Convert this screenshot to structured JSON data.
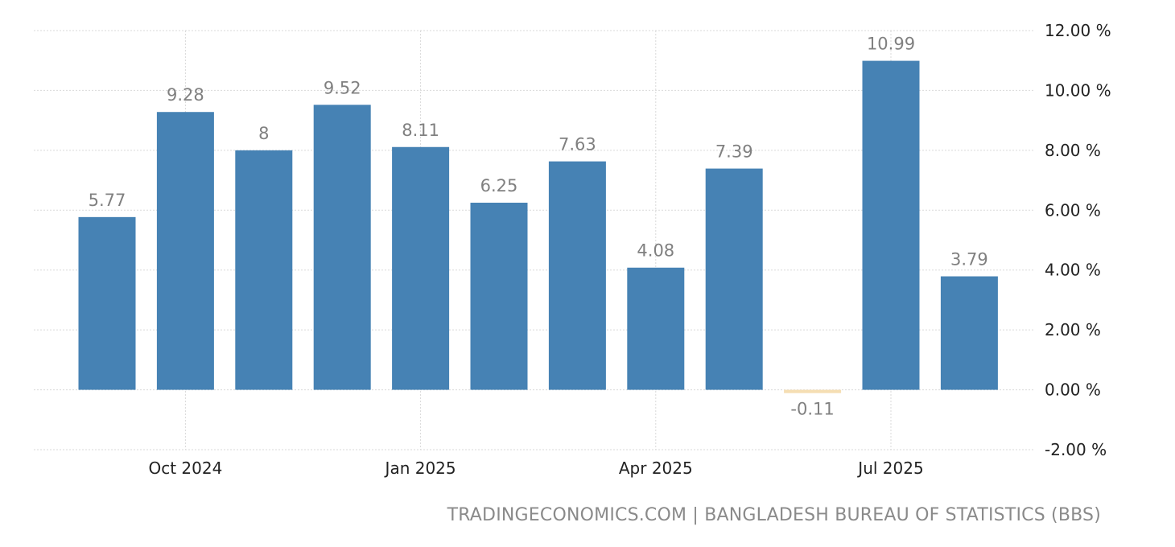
{
  "chart_data": {
    "type": "bar",
    "categories": [
      "Sep 2024",
      "Oct 2024",
      "Nov 2024",
      "Dec 2024",
      "Jan 2025",
      "Feb 2025",
      "Mar 2025",
      "Apr 2025",
      "May 2025",
      "Jun 2025",
      "Jul 2025",
      "Aug 2025"
    ],
    "values": [
      5.77,
      9.28,
      8,
      9.52,
      8.11,
      6.25,
      7.63,
      4.08,
      7.39,
      -0.11,
      10.99,
      3.79
    ],
    "value_labels": [
      "5.77",
      "9.28",
      "8",
      "9.52",
      "8.11",
      "6.25",
      "7.63",
      "4.08",
      "7.39",
      "-0.11",
      "10.99",
      "3.79"
    ],
    "x_ticks": [
      {
        "label": "Oct 2024",
        "category": "Oct 2024"
      },
      {
        "label": "Jan 2025",
        "category": "Jan 2025"
      },
      {
        "label": "Apr 2025",
        "category": "Apr 2025"
      },
      {
        "label": "Jul 2025",
        "category": "Jul 2025"
      }
    ],
    "y_ticks": [
      "12.00 %",
      "10.00 %",
      "8.00 %",
      "6.00 %",
      "4.00 %",
      "2.00 %",
      "0.00 %",
      "-2.00 %"
    ],
    "y_tick_values": [
      12,
      10,
      8,
      6,
      4,
      2,
      0,
      -2
    ],
    "ylim": [
      -2,
      12
    ],
    "y_axis_position": "right",
    "grid": true,
    "colors": {
      "positive": "#4682b4",
      "negative": "#f5deb3"
    },
    "title": "",
    "xlabel": "",
    "ylabel": ""
  },
  "source_text": "TRADINGECONOMICS.COM | BANGLADESH BUREAU OF STATISTICS (BBS)"
}
